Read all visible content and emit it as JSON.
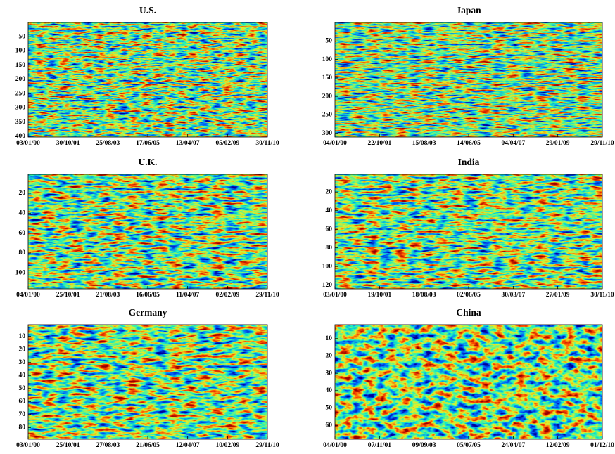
{
  "chart_data": [
    {
      "type": "heatmap",
      "title": "U.S.",
      "categories": [
        "03/01/00",
        "30/10/01",
        "25/08/03",
        "17/06/05",
        "13/04/07",
        "05/02/09",
        "30/11/10"
      ],
      "ylim": [
        0,
        403
      ],
      "yticks": [
        50,
        100,
        150,
        200,
        250,
        300,
        350,
        400
      ]
    },
    {
      "type": "heatmap",
      "title": "Japan",
      "categories": [
        "04/01/00",
        "22/10/01",
        "15/08/03",
        "14/06/05",
        "04/04/07",
        "29/01/09",
        "29/11/10"
      ],
      "ylim": [
        0,
        310
      ],
      "yticks": [
        50,
        100,
        150,
        200,
        250,
        300
      ]
    },
    {
      "type": "heatmap",
      "title": "U.K.",
      "categories": [
        "04/01/00",
        "25/10/01",
        "21/08/03",
        "16/06/05",
        "11/04/07",
        "02/02/09",
        "29/11/10"
      ],
      "ylim": [
        1,
        116
      ],
      "yticks": [
        20,
        40,
        60,
        80,
        100
      ]
    },
    {
      "type": "heatmap",
      "title": "India",
      "categories": [
        "03/01/00",
        "19/10/01",
        "18/08/03",
        "02/06/05",
        "30/03/07",
        "27/01/09",
        "30/11/10"
      ],
      "ylim": [
        1,
        124
      ],
      "yticks": [
        20,
        40,
        60,
        80,
        100,
        120
      ]
    },
    {
      "type": "heatmap",
      "title": "Germany",
      "categories": [
        "03/01/00",
        "25/10/01",
        "27/08/03",
        "21/06/05",
        "12/04/07",
        "10/02/09",
        "29/11/10"
      ],
      "ylim": [
        1,
        89
      ],
      "yticks": [
        10,
        20,
        30,
        40,
        50,
        60,
        70,
        80
      ]
    },
    {
      "type": "heatmap",
      "title": "China",
      "categories": [
        "04/01/00",
        "07/11/01",
        "09/09/03",
        "05/07/05",
        "24/04/07",
        "12/02/09",
        "01/12/10"
      ],
      "ylim": [
        2,
        68
      ],
      "yticks": [
        10,
        20,
        30,
        40,
        50,
        60
      ]
    }
  ]
}
